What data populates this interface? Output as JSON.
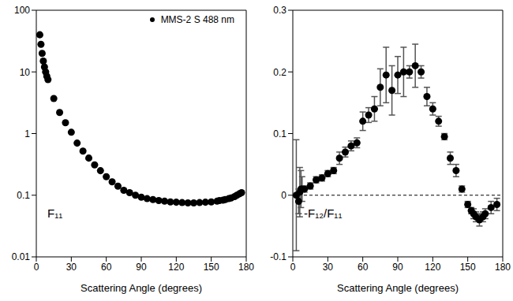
{
  "chart_data": [
    {
      "type": "scatter",
      "log": "y",
      "annotation": "F₁₁",
      "x_label": "Scattering Angle (degrees)",
      "xlim": [
        0,
        180
      ],
      "xticks": [
        0,
        30,
        60,
        90,
        120,
        150,
        180
      ],
      "ylim": [
        0.01,
        100
      ],
      "yticks": [
        0.01,
        0.1,
        1,
        10,
        100
      ],
      "legend": "top-right",
      "x": [
        3,
        4,
        5,
        6,
        7,
        8,
        9,
        10,
        15,
        20,
        25,
        30,
        35,
        40,
        45,
        50,
        55,
        60,
        65,
        70,
        75,
        80,
        85,
        90,
        95,
        100,
        105,
        110,
        115,
        120,
        125,
        130,
        135,
        140,
        145,
        150,
        155,
        157,
        160,
        162,
        165,
        167,
        170,
        172,
        174,
        176
      ],
      "series": [
        {
          "name": "MMS-2 S 488 nm",
          "color": "#000000",
          "marker": "circle",
          "values": [
            40,
            28,
            20,
            15,
            12,
            10,
            8.5,
            7.5,
            3.7,
            2.2,
            1.5,
            1.05,
            0.7,
            0.52,
            0.4,
            0.31,
            0.25,
            0.2,
            0.165,
            0.14,
            0.12,
            0.11,
            0.1,
            0.093,
            0.088,
            0.085,
            0.082,
            0.08,
            0.078,
            0.077,
            0.076,
            0.075,
            0.075,
            0.076,
            0.077,
            0.078,
            0.08,
            0.082,
            0.083,
            0.085,
            0.088,
            0.09,
            0.095,
            0.1,
            0.105,
            0.11
          ]
        }
      ]
    },
    {
      "type": "scatter",
      "annotation": "-F₁₂/F₁₁",
      "x_label": "Scattering Angle (degrees)",
      "xlim": [
        0,
        180
      ],
      "xticks": [
        0,
        30,
        60,
        90,
        120,
        150,
        180
      ],
      "ylim": [
        -0.1,
        0.3
      ],
      "yticks": [
        -0.1,
        0,
        0.1,
        0.2,
        0.3
      ],
      "reference_line": 0,
      "color": "#000000",
      "marker": "circle",
      "x": [
        3,
        5,
        6,
        7,
        8,
        10,
        15,
        20,
        25,
        30,
        35,
        40,
        45,
        50,
        55,
        60,
        65,
        70,
        75,
        80,
        85,
        90,
        95,
        100,
        105,
        110,
        115,
        120,
        125,
        130,
        135,
        140,
        145,
        150,
        153,
        155,
        157,
        160,
        163,
        165,
        170,
        175
      ],
      "values": [
        0,
        -0.01,
        0.005,
        0.01,
        0.01,
        0.01,
        0.015,
        0.025,
        0.028,
        0.035,
        0.04,
        0.06,
        0.07,
        0.08,
        0.085,
        0.12,
        0.13,
        0.14,
        0.175,
        0.195,
        0.17,
        0.195,
        0.2,
        0.2,
        0.21,
        0.2,
        0.16,
        0.14,
        0.12,
        0.095,
        0.06,
        0.04,
        0.01,
        -0.015,
        -0.025,
        -0.03,
        -0.035,
        -0.04,
        -0.035,
        -0.03,
        -0.02,
        -0.015
      ],
      "errors": [
        0.09,
        0.02,
        0.04,
        0.03,
        0.02,
        0.005,
        0.005,
        0.005,
        0.005,
        0.005,
        0.005,
        0.01,
        0.008,
        0.008,
        0.008,
        0.015,
        0.012,
        0.02,
        0.03,
        0.045,
        0.04,
        0.03,
        0.04,
        0.01,
        0.035,
        0.01,
        0.015,
        0.01,
        0.008,
        0.005,
        0.01,
        0.01,
        0.005,
        0.005,
        0.005,
        0.008,
        0.008,
        0.01,
        0.008,
        0.008,
        0.01,
        0.01
      ]
    }
  ]
}
